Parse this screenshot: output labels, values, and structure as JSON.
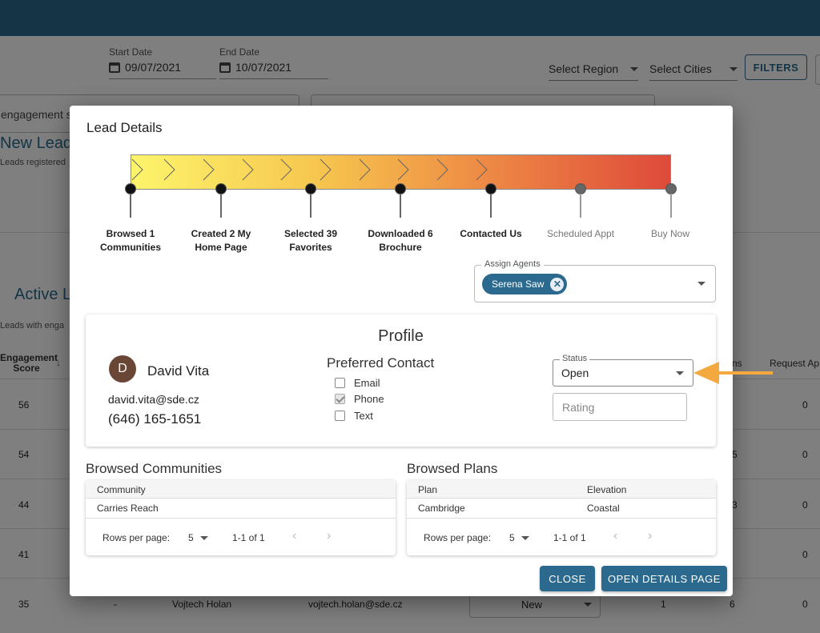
{
  "background": {
    "start_date": {
      "label": "Start Date",
      "value": "09/07/2021"
    },
    "end_date": {
      "label": "End Date",
      "value": "10/07/2021"
    },
    "region_select": "Select Region",
    "cities_select": "Select Cities",
    "filters_label": "FILTERS",
    "engagement_search_fragment": "engagement s",
    "new_leads_fragment": "New Lead",
    "new_leads_sub_fragment": "Leads registered",
    "active_leads_fragment": "Active L",
    "active_leads_sub_fragment": "Leads with enga",
    "engagement_header": "Engagement\nScore",
    "col_ns_fragment": "ns",
    "col_request_fragment": "Request Ap",
    "scores": [
      "56",
      "54",
      "44",
      "41",
      "35"
    ],
    "right_col_values": [
      "0",
      "0",
      "0",
      "0",
      "0"
    ],
    "mid_col_fragments": [
      "",
      "5",
      "3",
      "",
      ""
    ],
    "last_row": {
      "dash": "-",
      "name": "Vojtech Holan",
      "email": "vojtech.holan@sde.cz",
      "status": "New",
      "n1": "1",
      "n2": "6"
    }
  },
  "modal": {
    "title": "Lead Details",
    "stages": [
      {
        "label": "Browsed 1\nCommunities",
        "done": true
      },
      {
        "label": "Created 2 My\nHome Page",
        "done": true
      },
      {
        "label": "Selected 39\nFavorites",
        "done": true
      },
      {
        "label": "Downloaded 6\nBrochure",
        "done": true
      },
      {
        "label": "Contacted Us",
        "done": true
      },
      {
        "label": "Scheduled Appt",
        "done": false
      },
      {
        "label": "Buy Now",
        "done": false
      }
    ],
    "assign_agents": {
      "label": "Assign Agents",
      "chips": [
        "Serena Saw"
      ]
    },
    "profile": {
      "title": "Profile",
      "avatar_initial": "D",
      "name": "David Vita",
      "email": "david.vita@sde.cz",
      "phone": "(646) 165-1651",
      "preferred_contact_title": "Preferred Contact",
      "contact_options": [
        {
          "label": "Email",
          "checked": false
        },
        {
          "label": "Phone",
          "checked": true
        },
        {
          "label": "Text",
          "checked": false
        }
      ],
      "status": {
        "label": "Status",
        "value": "Open"
      },
      "rating_placeholder": "Rating"
    },
    "browsed_communities": {
      "title": "Browsed Communities",
      "columns": [
        "Community"
      ],
      "rows": [
        [
          "Carries Reach"
        ]
      ],
      "rows_per_page_label": "Rows per page:",
      "rows_per_page": "5",
      "range": "1-1 of 1"
    },
    "browsed_plans": {
      "title": "Browsed Plans",
      "columns": [
        "Plan",
        "Elevation"
      ],
      "rows": [
        [
          "Cambridge",
          "Coastal"
        ]
      ],
      "rows_per_page_label": "Rows per page:",
      "rows_per_page": "5",
      "range": "1-1 of 1"
    },
    "close_label": "CLOSE",
    "open_details_label": "OPEN DETAILS PAGE"
  },
  "colors": {
    "primary": "#2b6a8e",
    "arrow": "#f4a940"
  }
}
